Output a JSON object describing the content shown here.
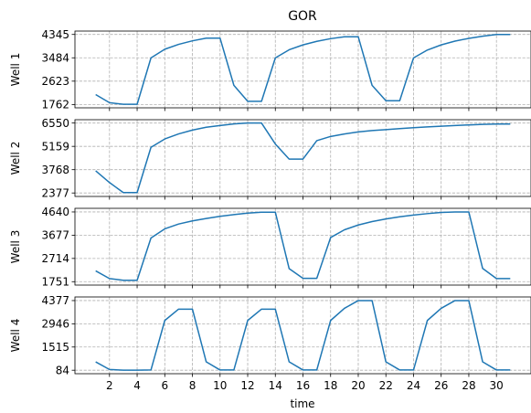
{
  "chart_data": {
    "type": "line",
    "title": "GOR",
    "xlabel": "time",
    "xlim": [
      -0.5,
      32.5
    ],
    "xticks": [
      2,
      4,
      6,
      8,
      10,
      12,
      14,
      16,
      18,
      20,
      22,
      24,
      26,
      28,
      30
    ],
    "grid": true,
    "line_color": "#1f77b4",
    "x": [
      1,
      2,
      3,
      4,
      5,
      6,
      7,
      8,
      9,
      10,
      11,
      12,
      13,
      14,
      15,
      16,
      17,
      18,
      19,
      20,
      21,
      22,
      23,
      24,
      25,
      26,
      27,
      28,
      29,
      30,
      31
    ],
    "panels": [
      {
        "ylabel": "Well 1",
        "ylim": [
          1640,
          4470
        ],
        "yticks": [
          1762,
          2623,
          3484,
          4345
        ],
        "values": [
          2130,
          1830,
          1770,
          1770,
          3480,
          3800,
          3980,
          4110,
          4210,
          4210,
          2470,
          1880,
          1880,
          3480,
          3780,
          3960,
          4090,
          4190,
          4260,
          4260,
          2470,
          1900,
          1900,
          3480,
          3770,
          3960,
          4100,
          4200,
          4280,
          4345,
          4345
        ]
      },
      {
        "ylabel": "Well 2",
        "ylim": [
          2170,
          6750
        ],
        "yticks": [
          2377,
          3768,
          5159,
          6550
        ],
        "values": [
          3700,
          3000,
          2400,
          2400,
          5100,
          5600,
          5900,
          6130,
          6300,
          6400,
          6500,
          6550,
          6550,
          5300,
          4400,
          4400,
          5500,
          5750,
          5900,
          6020,
          6100,
          6160,
          6220,
          6270,
          6320,
          6360,
          6400,
          6440,
          6470,
          6490,
          6490
        ]
      },
      {
        "ylabel": "Well 3",
        "ylim": [
          1610,
          4790
        ],
        "yticks": [
          1751,
          2714,
          3677,
          4640
        ],
        "values": [
          2200,
          1880,
          1810,
          1810,
          3560,
          3940,
          4140,
          4270,
          4370,
          4460,
          4530,
          4590,
          4630,
          4630,
          2290,
          1890,
          1890,
          3580,
          3900,
          4100,
          4240,
          4350,
          4440,
          4510,
          4570,
          4620,
          4640,
          4640,
          2300,
          1880,
          1880
        ]
      },
      {
        "ylabel": "Well 4",
        "ylim": [
          -130,
          4600
        ],
        "yticks": [
          84,
          1515,
          2946,
          4377
        ],
        "values": [
          600,
          130,
          90,
          90,
          100,
          3150,
          3850,
          3850,
          600,
          100,
          100,
          3150,
          3850,
          3850,
          600,
          100,
          100,
          3150,
          3900,
          4377,
          4377,
          600,
          100,
          100,
          3150,
          3900,
          4377,
          4377,
          600,
          100,
          100
        ]
      }
    ]
  }
}
